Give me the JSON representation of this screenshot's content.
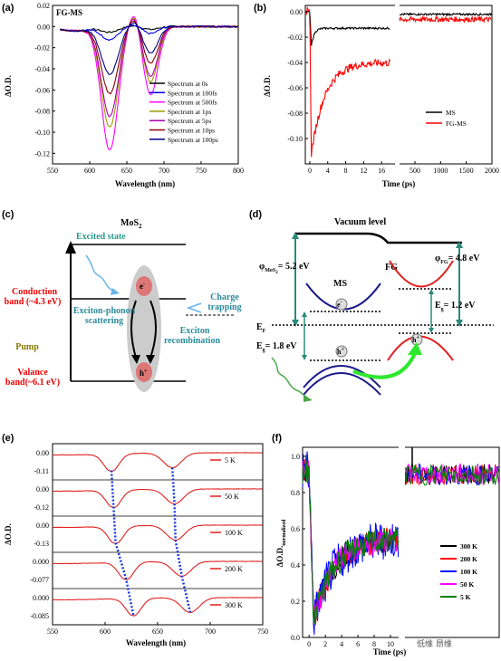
{
  "panels": {
    "a": {
      "label": "(a)",
      "title": "FG-MS",
      "xlabel": "Wavelength (nm)",
      "ylabel": "ΔO.D.",
      "xticks": [
        "550",
        "600",
        "650",
        "700",
        "750",
        "800"
      ],
      "yticks": [
        "0.02",
        "0.00",
        "-0.02",
        "-0.04",
        "-0.06",
        "-0.08",
        "-0.10",
        "-0.12"
      ]
    },
    "b": {
      "label": "(b)",
      "xlabel": "Time (ps)",
      "ylabel": "ΔO.D.",
      "xticks": [
        "0",
        "4",
        "8",
        "12",
        "16",
        "500",
        "1000",
        "1500",
        "2000"
      ],
      "yticks": [
        "0.00",
        "-0.02",
        "-0.04",
        "-0.06",
        "-0.08",
        "-0.10"
      ]
    },
    "c": {
      "label": "(c)"
    },
    "d": {
      "label": "(d)"
    },
    "e": {
      "label": "(e)",
      "xlabel": "Wavelength (nm)",
      "ylabel": "ΔO.D.",
      "xticks": [
        "550",
        "600",
        "650",
        "700",
        "750"
      ]
    },
    "f": {
      "label": "(f)",
      "xlabel": "Time (ps)",
      "ylabel": "ΔO.D.",
      "ysub": "normalized",
      "xticks": [
        "0",
        "2",
        "4",
        "6",
        "8",
        "10"
      ],
      "yticks": [
        "0.0",
        "0.2",
        "0.4",
        "0.6",
        "0.8",
        "1.0"
      ]
    }
  },
  "chart_data": [
    {
      "type": "line",
      "panel": "a",
      "title": "FG-MS",
      "xlabel": "Wavelength (nm)",
      "ylabel": "ΔO.D.",
      "xlim": [
        550,
        800
      ],
      "ylim": [
        -0.13,
        0.02
      ],
      "legend": "bottom-right",
      "series": [
        {
          "name": "Spectrum at 0s",
          "color": "#000000",
          "amp": 0.005
        },
        {
          "name": "Spectrum at 100fs",
          "color": "#0000ee",
          "amp": 0.012
        },
        {
          "name": "Spectrum at 500fs",
          "color": "#ff00ff",
          "amp": 0.117
        },
        {
          "name": "Spectrum at 1ps",
          "color": "#a09a00",
          "amp": 0.095
        },
        {
          "name": "Spectrum at 5ps",
          "color": "#aa00aa",
          "amp": 0.085
        },
        {
          "name": "Spectrum at 10ps",
          "color": "#8b0000",
          "amp": 0.063
        },
        {
          "name": "Spectrum at 100ps",
          "color": "#000088",
          "amp": 0.045
        }
      ]
    },
    {
      "type": "line",
      "panel": "b",
      "xlabel": "Time (ps)",
      "ylabel": "ΔO.D.",
      "ylim": [
        -0.12,
        0.005
      ],
      "legend": "bottom-right",
      "series": [
        {
          "name": "MS",
          "color": "#000000",
          "min": -0.027,
          "plateau": -0.013
        },
        {
          "name": "FG-MS",
          "color": "#ff0000",
          "min": -0.112,
          "plateau": -0.04
        }
      ]
    },
    {
      "type": "line",
      "panel": "e",
      "xlabel": "Wavelength (nm)",
      "ylabel": "ΔO.D.",
      "xlim": [
        550,
        750
      ],
      "series": [
        {
          "name": "5 K",
          "top": "0.00",
          "bottom": "-0.11",
          "dip1": 606,
          "dip2": 664
        },
        {
          "name": "50 K",
          "top": "0.00",
          "bottom": "-0.12",
          "dip1": 608,
          "dip2": 666
        },
        {
          "name": "100 K",
          "top": "0.00",
          "bottom": "-0.13",
          "dip1": 610,
          "dip2": 667
        },
        {
          "name": "200 K",
          "top": "0.000",
          "bottom": "-0.077",
          "dip1": 620,
          "dip2": 673
        },
        {
          "name": "300 K",
          "top": "0.000",
          "bottom": "-0.085",
          "dip1": 627,
          "dip2": 681
        }
      ]
    },
    {
      "type": "line",
      "panel": "f",
      "xlabel": "Time (ps)",
      "ylabel": "ΔO.D.",
      "ylim": [
        0,
        1.05
      ],
      "legend": "bottom-right",
      "series": [
        {
          "name": "300 K",
          "color": "#000000"
        },
        {
          "name": "200 K",
          "color": "#ff0000"
        },
        {
          "name": "100 K",
          "color": "#0000ff"
        },
        {
          "name": "50 K",
          "color": "#ff00ff"
        },
        {
          "name": "5 K",
          "color": "#008000"
        }
      ]
    }
  ],
  "diagram_c": {
    "title": "MoS",
    "title_sub": "2",
    "excited_state": "Excited state",
    "conduction_band": "Conduction",
    "conduction_band2": "band (~4.3 eV)",
    "pump": "Pump",
    "valance_band": "Valance",
    "valance_band2": "band(~6.1 eV)",
    "exciton_phonon": "Exciton-phonon",
    "scattering": "scattering",
    "charge": "Charge",
    "trapping": "trapping",
    "exciton": "Exciton",
    "recombination": "recombination",
    "electron": "e",
    "electron_sup": "-",
    "hole": "h",
    "hole_sup": "+"
  },
  "diagram_d": {
    "vacuum": "Vacuum level",
    "phi_ms": "φ",
    "phi_ms_sub": "MoS",
    "phi_ms_sub2": "2",
    "phi_ms_val": "= 5.2 eV",
    "phi_fg": "φ",
    "phi_fg_sub": "FG",
    "phi_fg_val": "= 4.8 eV",
    "ms": "MS",
    "fg": "FG",
    "ef": "E",
    "ef_sub": "F",
    "eg1": "E",
    "eg1_sub": "g",
    "eg1_val": "= 1.8 eV",
    "eg2": "E",
    "eg2_sub": "g",
    "eg2_val": "= 1.2 eV",
    "electron": "e",
    "electron_sup": "-",
    "hole": "h",
    "hole_sup": "+",
    "hole2": "h",
    "hole2_sup": "+"
  },
  "watermark": "低维 昂维"
}
